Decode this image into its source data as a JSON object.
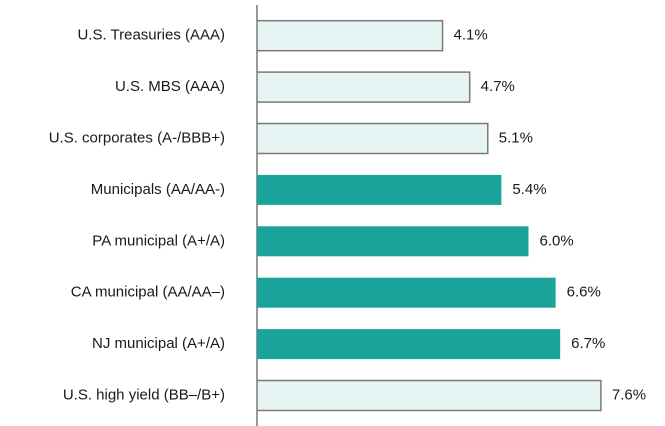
{
  "chart_data": {
    "type": "hbar",
    "categories": [
      "U.S. Treasuries (AAA)",
      "U.S. MBS (AAA)",
      "U.S. corporates (A-/BBB+)",
      "Municipals (AA/AA-)",
      "PA municipal (A+/A)",
      "CA municipal (AA/AA–)",
      "NJ municipal (A+/A)",
      "U.S. high yield (BB–/B+)"
    ],
    "values": [
      4.1,
      4.7,
      5.1,
      5.4,
      6.0,
      6.6,
      6.7,
      7.6
    ],
    "value_labels": [
      "4.1%",
      "4.7%",
      "5.1%",
      "5.4%",
      "6.0%",
      "6.6%",
      "6.7%",
      "7.6%"
    ],
    "colors": [
      "#e6f4f3",
      "#e6f4f3",
      "#e6f4f3",
      "#1aa39a",
      "#1aa39a",
      "#1aa39a",
      "#1aa39a",
      "#e6f4f3"
    ],
    "xlim": [
      0,
      8
    ]
  }
}
